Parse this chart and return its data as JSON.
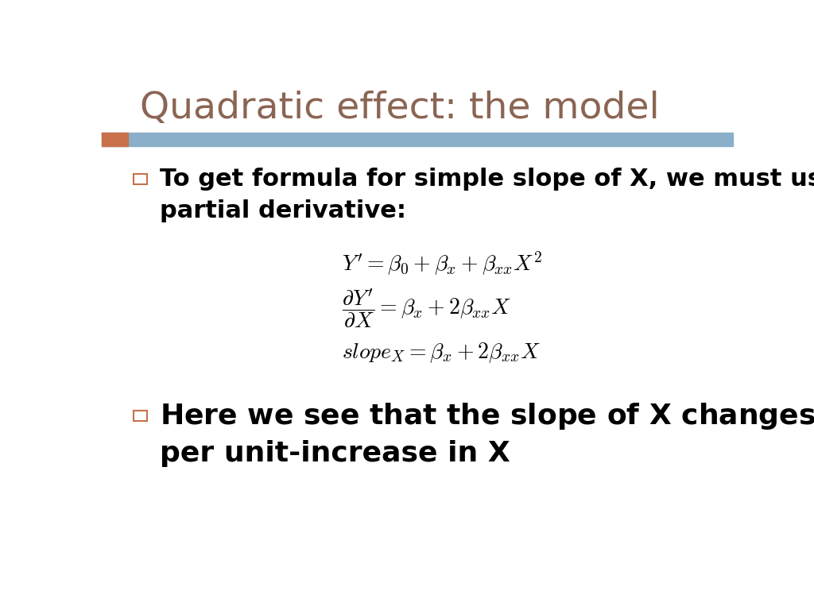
{
  "title": "Quadratic effect: the model",
  "title_color": "#8B6553",
  "title_fontsize": 34,
  "bg_color": "#FFFFFF",
  "header_bar_color": "#8BAFC8",
  "header_accent_color": "#C8714A",
  "bullet_color": "#C8714A",
  "bullet_text_color": "#000000",
  "bullet1_text1": "To get formula for simple slope of X, we must use",
  "bullet1_text2": "partial derivative:",
  "bullet2_text2": "per unit-increase in X",
  "text_fontsize": 22,
  "eq_fontsize": 20,
  "bullet2_fontsize": 26
}
